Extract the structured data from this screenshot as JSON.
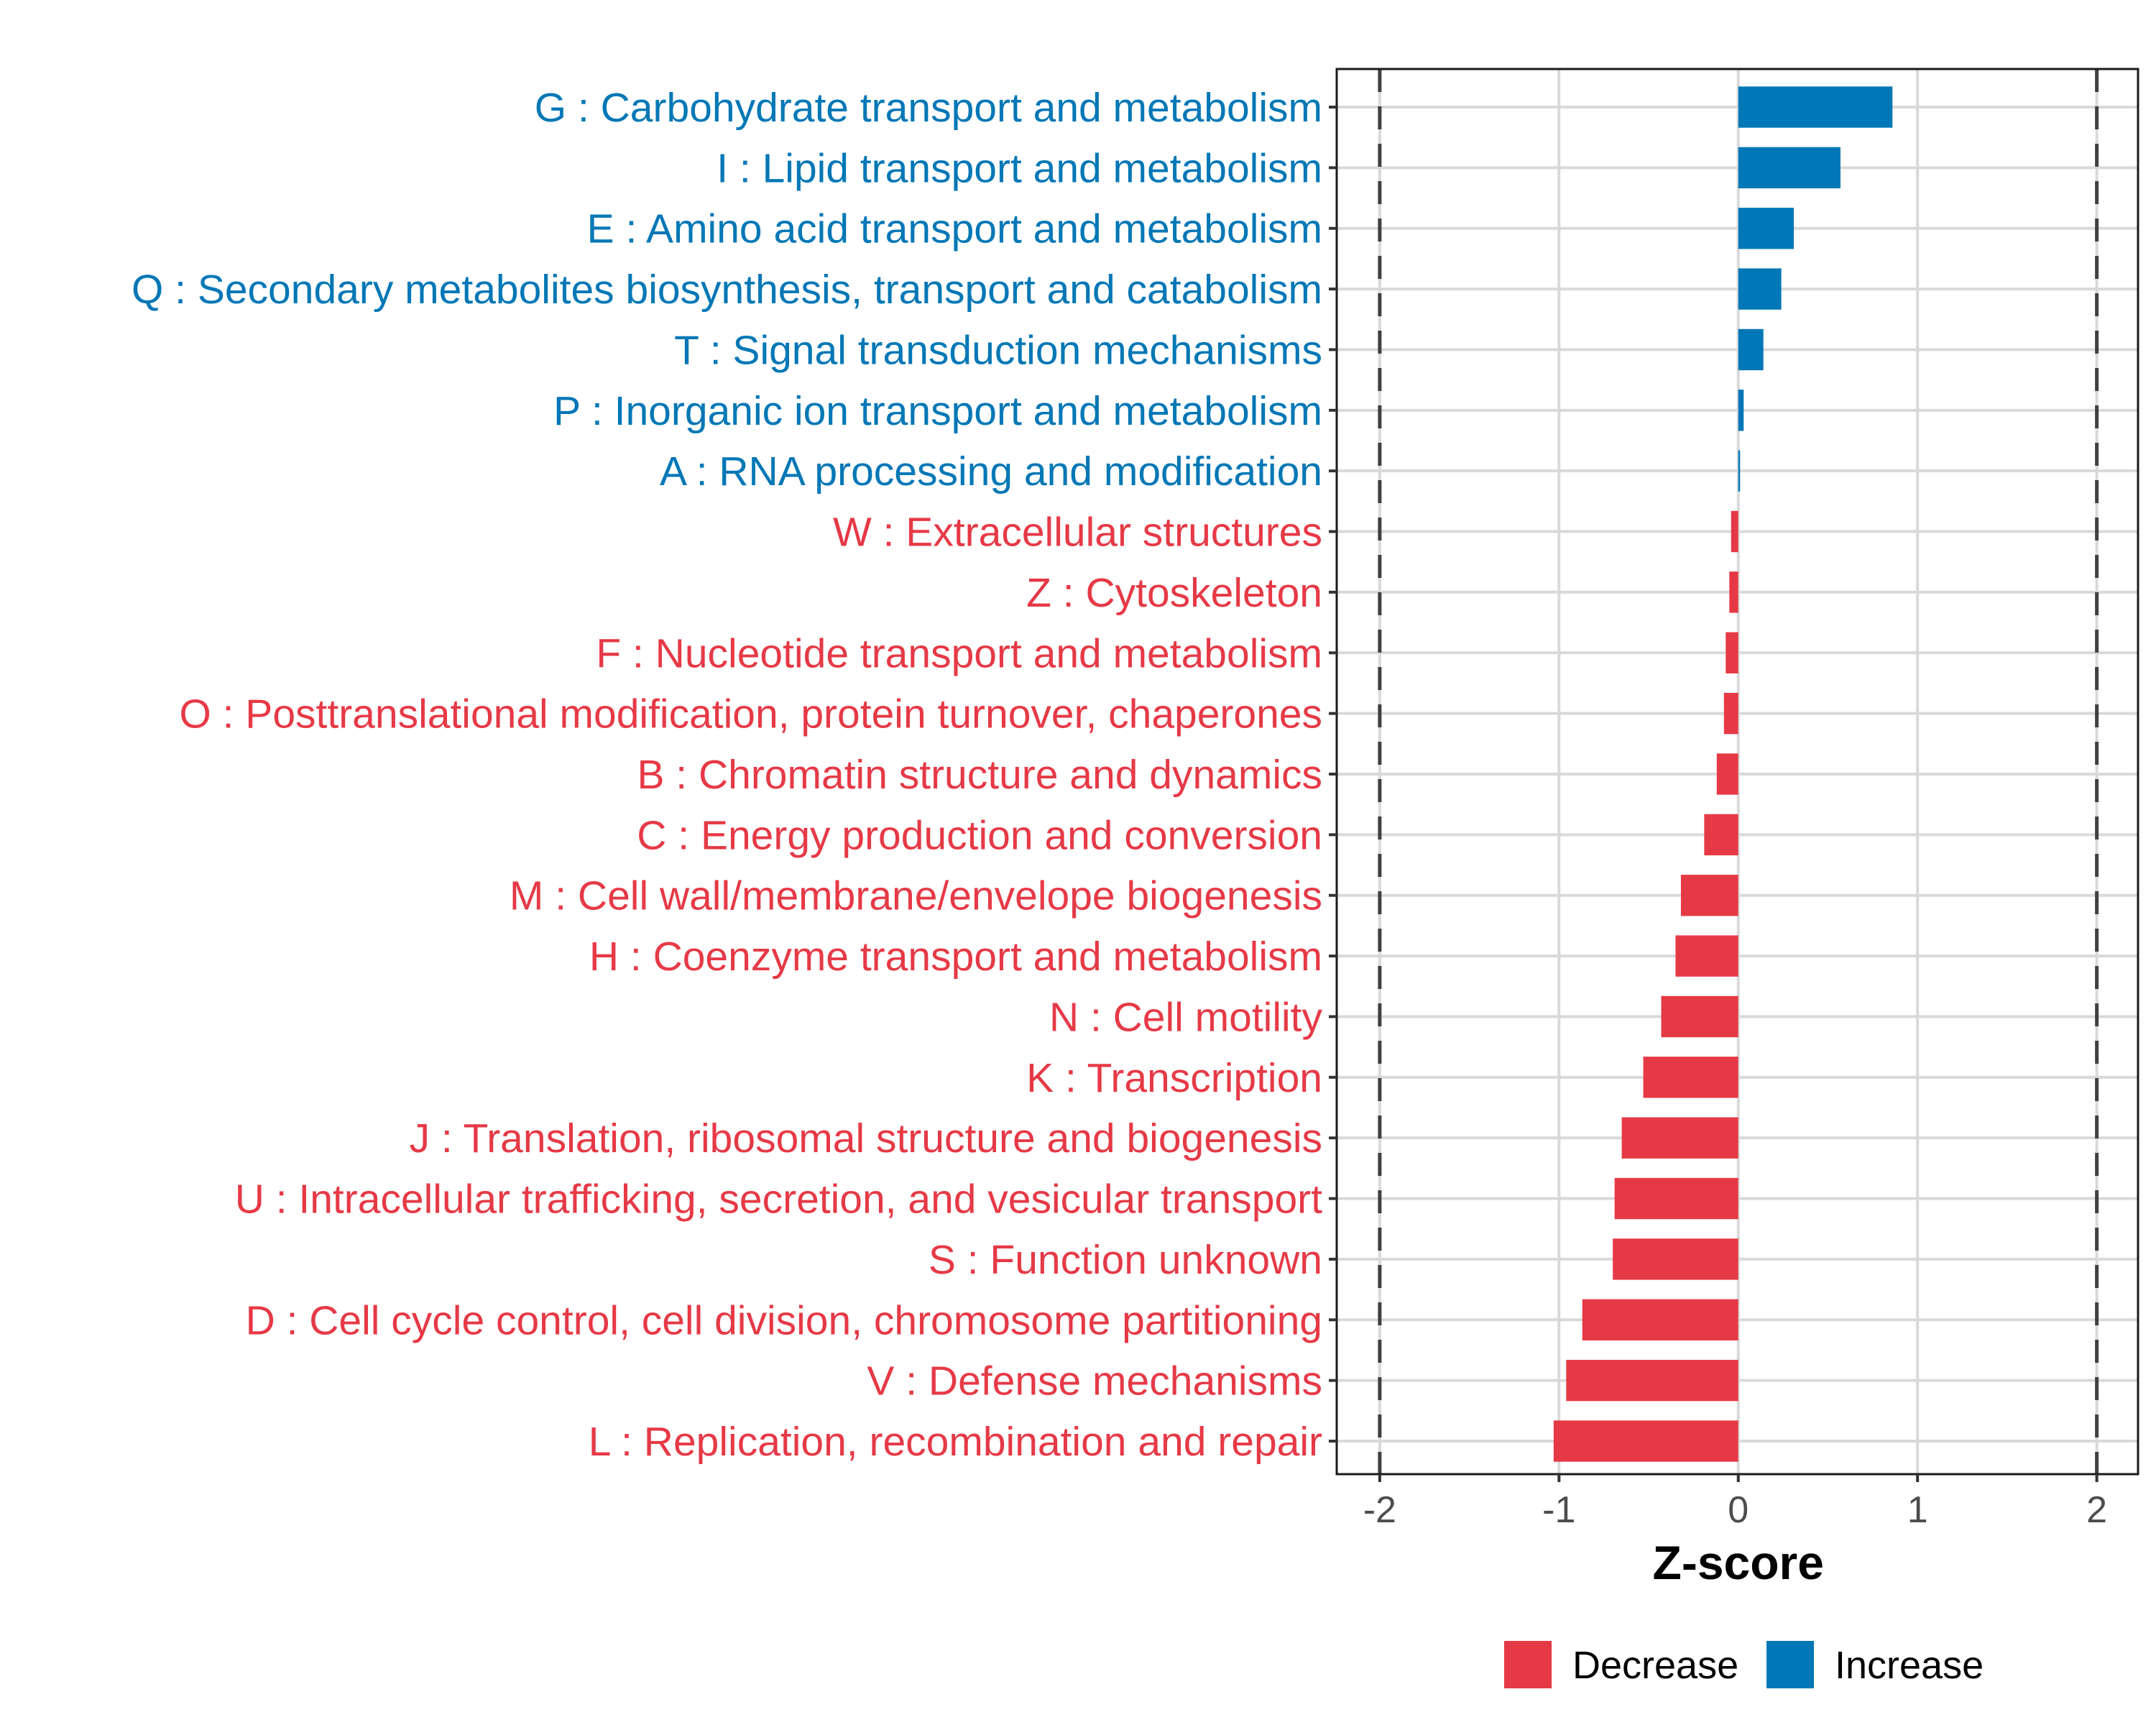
{
  "chart_data": {
    "type": "bar",
    "orientation": "horizontal",
    "title": "",
    "xlabel": "Z-score",
    "ylabel": "",
    "xlim": [
      -2.24,
      2.23
    ],
    "xticks": [
      -2,
      -1,
      0,
      1,
      2
    ],
    "xtick_labels": [
      "-2",
      "-1",
      "0",
      "1",
      "2"
    ],
    "reference_lines": [
      -2,
      2
    ],
    "grid": true,
    "colors": {
      "Decrease": "#E63946",
      "Increase": "#0077B6"
    },
    "legend": {
      "position": "bottom",
      "entries": [
        "Decrease",
        "Increase"
      ]
    },
    "categories": [
      "G : Carbohydrate transport and metabolism",
      "I : Lipid transport and metabolism",
      "E : Amino acid transport and metabolism",
      "Q : Secondary metabolites biosynthesis, transport and catabolism",
      "T : Signal transduction mechanisms",
      "P : Inorganic ion transport and metabolism",
      "A : RNA processing and modification",
      "W : Extracellular structures",
      "Z : Cytoskeleton",
      "F : Nucleotide transport and metabolism",
      "O : Posttranslational modification, protein turnover, chaperones",
      "B : Chromatin structure and dynamics",
      "C : Energy production and conversion",
      "M : Cell wall/membrane/envelope biogenesis",
      "H : Coenzyme transport and metabolism",
      "N : Cell motility",
      "K : Transcription",
      "J : Translation, ribosomal structure and biogenesis",
      "U : Intracellular trafficking, secretion, and vesicular transport",
      "S : Function unknown",
      "D : Cell cycle control, cell division, chromosome partitioning",
      "V : Defense mechanisms",
      "L : Replication, recombination and repair"
    ],
    "values": [
      0.86,
      0.57,
      0.31,
      0.24,
      0.14,
      0.03,
      0.01,
      -0.04,
      -0.05,
      -0.07,
      -0.08,
      -0.12,
      -0.19,
      -0.32,
      -0.35,
      -0.43,
      -0.53,
      -0.65,
      -0.69,
      -0.7,
      -0.87,
      -0.96,
      -1.03
    ],
    "groups": [
      "Increase",
      "Increase",
      "Increase",
      "Increase",
      "Increase",
      "Increase",
      "Increase",
      "Decrease",
      "Decrease",
      "Decrease",
      "Decrease",
      "Decrease",
      "Decrease",
      "Decrease",
      "Decrease",
      "Decrease",
      "Decrease",
      "Decrease",
      "Decrease",
      "Decrease",
      "Decrease",
      "Decrease",
      "Decrease"
    ]
  }
}
